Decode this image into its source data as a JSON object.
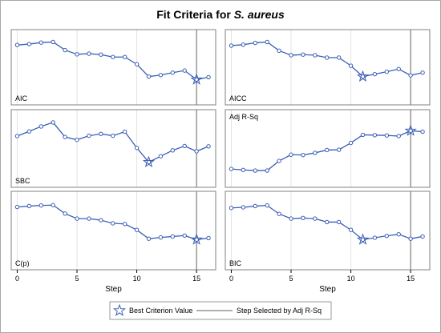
{
  "chart_data": {
    "type": "line",
    "title_prefix": "Fit Criteria for ",
    "title_italic": "S. aureus",
    "xlabel": "Step",
    "x": [
      0,
      1,
      2,
      3,
      4,
      5,
      6,
      7,
      8,
      9,
      10,
      11,
      12,
      13,
      14,
      15,
      16
    ],
    "xticks": [
      0,
      5,
      10,
      15
    ],
    "xlim": [
      -0.5,
      16.6
    ],
    "selected_step": 15,
    "grid": true,
    "colors": {
      "line": "#3b5fb5",
      "marker": "#3b5fb5",
      "star": "#3b5fb5",
      "ref_line": "#808080",
      "grid": "#e3e3e3",
      "frame": "#808080"
    },
    "panels": [
      {
        "label": "AIC",
        "label_pos": "bottom-left",
        "values": [
          0.74,
          0.77,
          0.82,
          0.84,
          0.57,
          0.43,
          0.45,
          0.42,
          0.34,
          0.34,
          0.1,
          -0.31,
          -0.26,
          -0.18,
          -0.11,
          -0.41,
          -0.33
        ],
        "best_step": 15
      },
      {
        "label": "AICC",
        "label_pos": "bottom-left",
        "values": [
          0.72,
          0.75,
          0.81,
          0.84,
          0.55,
          0.4,
          0.42,
          0.4,
          0.32,
          0.32,
          0.05,
          -0.31,
          -0.23,
          -0.15,
          -0.06,
          -0.27,
          -0.18
        ],
        "best_step": 11
      },
      {
        "label": "SBC",
        "label_pos": "bottom-left",
        "values": [
          0.4,
          0.55,
          0.71,
          0.84,
          0.37,
          0.28,
          0.41,
          0.47,
          0.41,
          0.54,
          0.02,
          -0.44,
          -0.25,
          -0.06,
          0.08,
          -0.09,
          0.07
        ],
        "best_step": 11
      },
      {
        "label": "Adj R-Sq",
        "label_pos": "top-left",
        "values": [
          -0.66,
          -0.69,
          -0.71,
          -0.71,
          -0.4,
          -0.2,
          -0.21,
          -0.14,
          -0.05,
          -0.04,
          0.18,
          0.44,
          0.43,
          0.42,
          0.4,
          0.57,
          0.54
        ],
        "best_step": 15
      },
      {
        "label": "C(p)",
        "label_pos": "bottom-left",
        "values": [
          0.75,
          0.78,
          0.8,
          0.81,
          0.54,
          0.38,
          0.38,
          0.33,
          0.23,
          0.21,
          0.02,
          -0.26,
          -0.22,
          -0.19,
          -0.16,
          -0.29,
          -0.24
        ],
        "best_step": 15
      },
      {
        "label": "BIC",
        "label_pos": "bottom-left",
        "values": [
          0.72,
          0.74,
          0.78,
          0.8,
          0.53,
          0.38,
          0.4,
          0.38,
          0.27,
          0.27,
          0.02,
          -0.29,
          -0.23,
          -0.17,
          -0.12,
          -0.26,
          -0.19
        ],
        "best_step": 11
      }
    ],
    "legend": {
      "position": "bottom-center",
      "items": [
        {
          "label": "Best Criterion Value",
          "symbol": "star"
        },
        {
          "label": "Step Selected by Adj R-Sq",
          "symbol": "line"
        }
      ]
    }
  }
}
